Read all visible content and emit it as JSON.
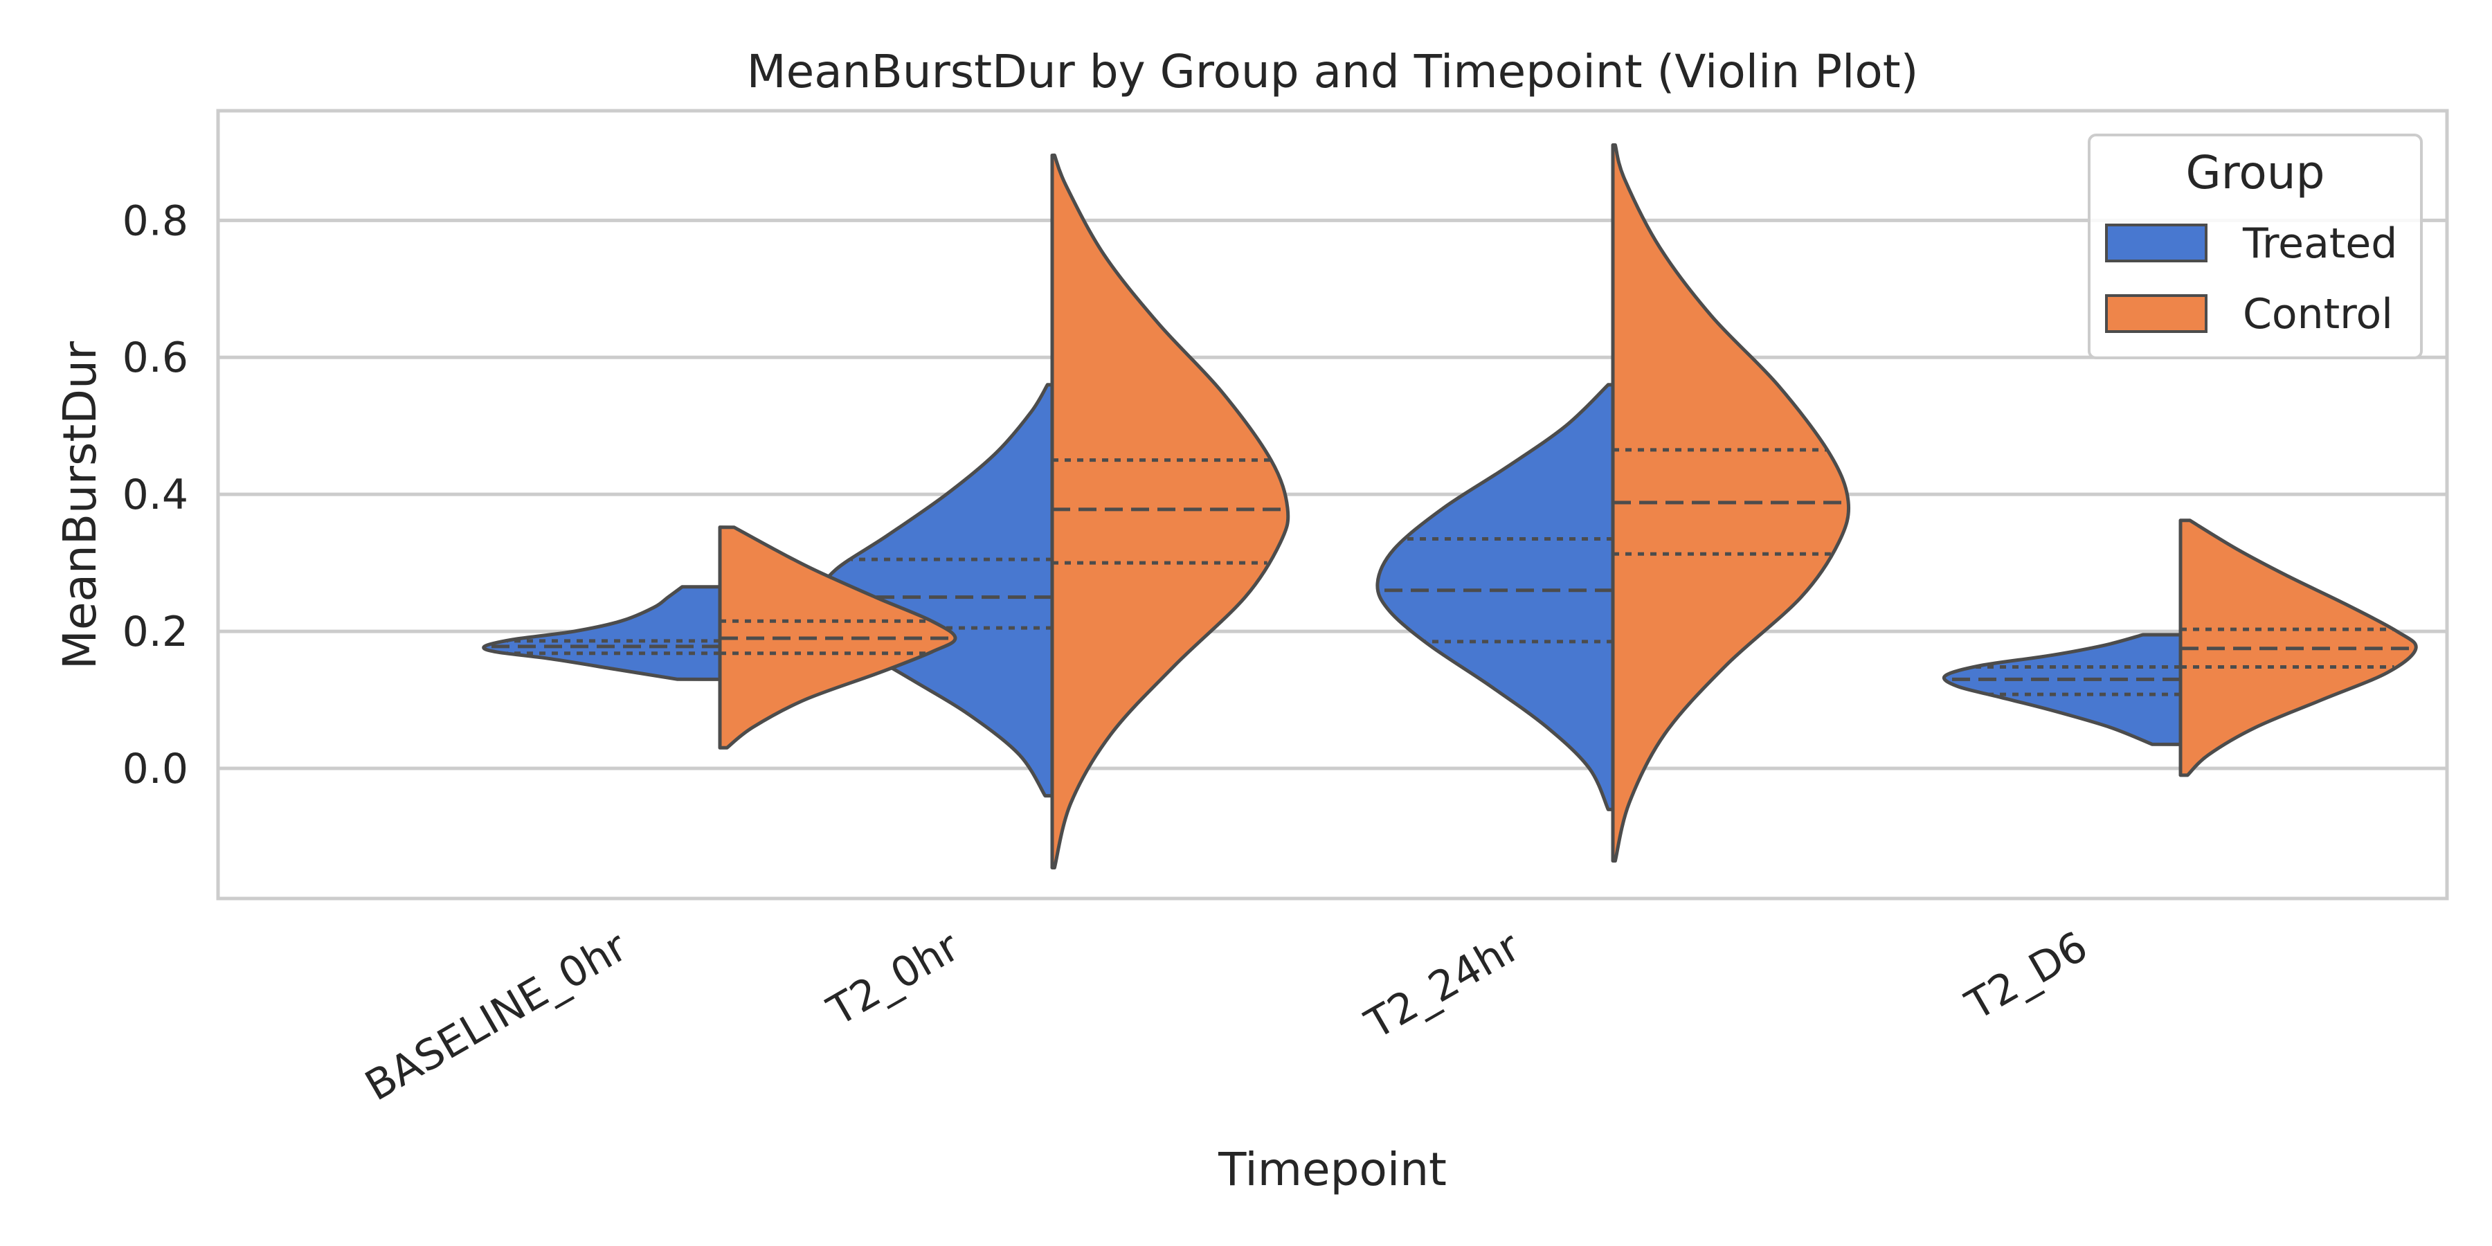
{
  "chart_data": {
    "type": "violin",
    "title": "MeanBurstDur by Group and Timepoint (Violin Plot)",
    "xlabel": "Timepoint",
    "ylabel": "MeanBurstDur",
    "categories": [
      "BASELINE_0hr",
      "T2_0hr",
      "T2_24hr",
      "T2_D6"
    ],
    "ylim": [
      -0.19,
      0.96
    ],
    "yticks": [
      0.0,
      0.2,
      0.4,
      0.6,
      0.8
    ],
    "ytick_labels": [
      "0.0",
      "0.2",
      "0.4",
      "0.6",
      "0.8"
    ],
    "grid": true,
    "split": true,
    "inner": "quartile",
    "legend": {
      "title": "Group",
      "position": "top-right"
    },
    "series": [
      {
        "name": "Treated",
        "color": "#4878d0",
        "violins": [
          {
            "category": "BASELINE_0hr",
            "range": [
              0.13,
              0.265
            ],
            "quartiles": [
              0.168,
              0.178,
              0.186
            ],
            "density": [
              [
                0.13,
                0.18
              ],
              [
                0.145,
                0.45
              ],
              [
                0.16,
                0.72
              ],
              [
                0.17,
                0.95
              ],
              [
                0.178,
                1.0
              ],
              [
                0.188,
                0.88
              ],
              [
                0.2,
                0.62
              ],
              [
                0.215,
                0.42
              ],
              [
                0.235,
                0.28
              ],
              [
                0.25,
                0.22
              ],
              [
                0.265,
                0.16
              ]
            ]
          },
          {
            "category": "T2_0hr",
            "range": [
              -0.04,
              0.56
            ],
            "quartiles": [
              0.205,
              0.25,
              0.305
            ],
            "density": [
              [
                -0.04,
                0.03
              ],
              [
                0.02,
                0.14
              ],
              [
                0.08,
                0.36
              ],
              [
                0.13,
                0.6
              ],
              [
                0.18,
                0.84
              ],
              [
                0.22,
                0.97
              ],
              [
                0.25,
                1.0
              ],
              [
                0.29,
                0.92
              ],
              [
                0.34,
                0.7
              ],
              [
                0.4,
                0.45
              ],
              [
                0.46,
                0.24
              ],
              [
                0.52,
                0.09
              ],
              [
                0.56,
                0.02
              ]
            ]
          },
          {
            "category": "T2_24hr",
            "range": [
              -0.06,
              0.56
            ],
            "quartiles": [
              0.185,
              0.26,
              0.335
            ],
            "density": [
              [
                -0.06,
                0.02
              ],
              [
                0.0,
                0.1
              ],
              [
                0.06,
                0.28
              ],
              [
                0.12,
                0.52
              ],
              [
                0.18,
                0.78
              ],
              [
                0.23,
                0.95
              ],
              [
                0.27,
                1.0
              ],
              [
                0.32,
                0.93
              ],
              [
                0.38,
                0.72
              ],
              [
                0.44,
                0.45
              ],
              [
                0.5,
                0.2
              ],
              [
                0.56,
                0.02
              ]
            ]
          },
          {
            "category": "T2_D6",
            "range": [
              0.035,
              0.195
            ],
            "quartiles": [
              0.108,
              0.13,
              0.148
            ],
            "density": [
              [
                0.035,
                0.12
              ],
              [
                0.06,
                0.3
              ],
              [
                0.085,
                0.55
              ],
              [
                0.105,
                0.78
              ],
              [
                0.12,
                0.95
              ],
              [
                0.135,
                1.0
              ],
              [
                0.15,
                0.85
              ],
              [
                0.165,
                0.55
              ],
              [
                0.18,
                0.32
              ],
              [
                0.195,
                0.16
              ]
            ]
          }
        ]
      },
      {
        "name": "Control",
        "color": "#ee854a",
        "violins": [
          {
            "category": "BASELINE_0hr",
            "range": [
              0.03,
              0.352
            ],
            "quartiles": [
              0.168,
              0.19,
              0.215
            ],
            "density": [
              [
                0.03,
                0.03
              ],
              [
                0.06,
                0.14
              ],
              [
                0.1,
                0.36
              ],
              [
                0.14,
                0.68
              ],
              [
                0.17,
                0.9
              ],
              [
                0.19,
                1.0
              ],
              [
                0.215,
                0.9
              ],
              [
                0.25,
                0.66
              ],
              [
                0.29,
                0.4
              ],
              [
                0.32,
                0.23
              ],
              [
                0.352,
                0.06
              ]
            ]
          },
          {
            "category": "T2_0hr",
            "range": [
              -0.145,
              0.895
            ],
            "quartiles": [
              0.3,
              0.378,
              0.45
            ],
            "density": [
              [
                -0.145,
                0.01
              ],
              [
                -0.05,
                0.08
              ],
              [
                0.05,
                0.25
              ],
              [
                0.15,
                0.52
              ],
              [
                0.25,
                0.82
              ],
              [
                0.33,
                0.97
              ],
              [
                0.38,
                1.0
              ],
              [
                0.45,
                0.93
              ],
              [
                0.55,
                0.72
              ],
              [
                0.65,
                0.45
              ],
              [
                0.75,
                0.22
              ],
              [
                0.85,
                0.06
              ],
              [
                0.895,
                0.01
              ]
            ]
          },
          {
            "category": "T2_24hr",
            "range": [
              -0.135,
              0.91
            ],
            "quartiles": [
              0.313,
              0.388,
              0.465
            ],
            "density": [
              [
                -0.135,
                0.01
              ],
              [
                -0.05,
                0.07
              ],
              [
                0.05,
                0.22
              ],
              [
                0.15,
                0.48
              ],
              [
                0.25,
                0.8
              ],
              [
                0.33,
                0.96
              ],
              [
                0.39,
                1.0
              ],
              [
                0.46,
                0.92
              ],
              [
                0.56,
                0.7
              ],
              [
                0.66,
                0.42
              ],
              [
                0.76,
                0.2
              ],
              [
                0.86,
                0.05
              ],
              [
                0.91,
                0.01
              ]
            ]
          },
          {
            "category": "T2_D6",
            "range": [
              -0.01,
              0.362
            ],
            "quartiles": [
              0.148,
              0.175,
              0.203
            ],
            "density": [
              [
                -0.01,
                0.03
              ],
              [
                0.02,
                0.12
              ],
              [
                0.06,
                0.32
              ],
              [
                0.1,
                0.6
              ],
              [
                0.14,
                0.88
              ],
              [
                0.175,
                1.0
              ],
              [
                0.2,
                0.92
              ],
              [
                0.24,
                0.7
              ],
              [
                0.28,
                0.46
              ],
              [
                0.32,
                0.24
              ],
              [
                0.362,
                0.04
              ]
            ]
          }
        ]
      }
    ]
  }
}
